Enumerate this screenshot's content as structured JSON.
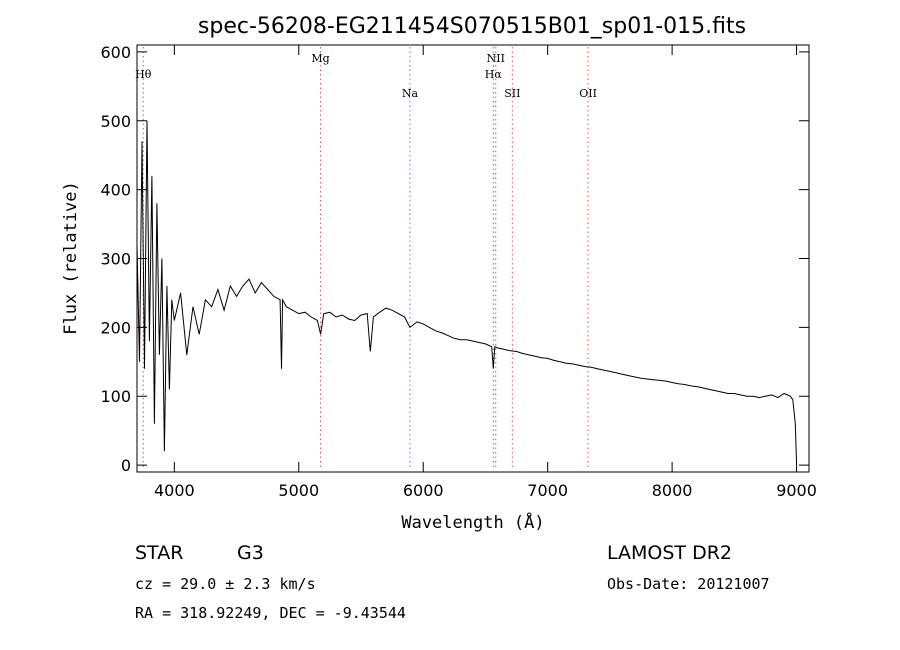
{
  "chart_data": {
    "type": "line",
    "title": "spec-56208-EG211454S070515B01_sp01-015.fits",
    "xlabel": "Wavelength (Å)",
    "ylabel": "Flux (relative)",
    "xlim": [
      3700,
      9100
    ],
    "ylim": [
      -10,
      610
    ],
    "x_ticks": [
      4000,
      5000,
      6000,
      7000,
      8000,
      9000
    ],
    "y_ticks": [
      0,
      100,
      200,
      300,
      400,
      500,
      600
    ],
    "grid": false,
    "series": [
      {
        "x": [
          3700,
          3720,
          3740,
          3760,
          3780,
          3800,
          3820,
          3840,
          3860,
          3880,
          3900,
          3920,
          3940,
          3960,
          3980,
          4000,
          4050,
          4100,
          4150,
          4200,
          4250,
          4300,
          4350,
          4400,
          4450,
          4500,
          4550,
          4600,
          4650,
          4700,
          4750,
          4800,
          4850,
          4861,
          4870,
          4900,
          4950,
          5000,
          5050,
          5100,
          5150,
          5175,
          5200,
          5250,
          5300,
          5350,
          5400,
          5450,
          5500,
          5550,
          5575,
          5600,
          5650,
          5700,
          5750,
          5800,
          5850,
          5893,
          5950,
          6000,
          6050,
          6100,
          6150,
          6200,
          6250,
          6300,
          6350,
          6400,
          6450,
          6500,
          6550,
          6563,
          6575,
          6600,
          6650,
          6700,
          6750,
          6800,
          6850,
          6900,
          6950,
          7000,
          7050,
          7100,
          7150,
          7200,
          7250,
          7300,
          7350,
          7400,
          7450,
          7500,
          7550,
          7600,
          7650,
          7700,
          7750,
          7800,
          7850,
          7900,
          7950,
          8000,
          8050,
          8100,
          8150,
          8200,
          8250,
          8300,
          8350,
          8400,
          8450,
          8500,
          8550,
          8600,
          8650,
          8700,
          8750,
          8800,
          8850,
          8900,
          8950,
          8970,
          8990,
          9000
        ],
        "y": [
          320,
          150,
          470,
          140,
          500,
          180,
          420,
          60,
          380,
          160,
          300,
          20,
          260,
          110,
          240,
          210,
          250,
          160,
          230,
          190,
          240,
          230,
          255,
          225,
          260,
          245,
          260,
          270,
          250,
          265,
          255,
          245,
          240,
          140,
          240,
          230,
          225,
          220,
          222,
          215,
          210,
          190,
          220,
          222,
          215,
          218,
          212,
          210,
          218,
          220,
          165,
          215,
          222,
          228,
          225,
          220,
          215,
          200,
          208,
          205,
          200,
          195,
          192,
          188,
          184,
          182,
          182,
          180,
          178,
          176,
          172,
          140,
          172,
          170,
          168,
          166,
          165,
          162,
          160,
          158,
          156,
          155,
          152,
          150,
          148,
          147,
          145,
          143,
          142,
          140,
          138,
          136,
          134,
          132,
          130,
          128,
          126,
          125,
          124,
          123,
          122,
          120,
          118,
          117,
          115,
          114,
          112,
          110,
          108,
          106,
          104,
          104,
          102,
          100,
          100,
          98,
          100,
          102,
          98,
          104,
          100,
          95,
          60,
          0
        ]
      }
    ],
    "lines": [
      {
        "label": "Hθ",
        "x": 3750,
        "row": 1
      },
      {
        "label": "Mg",
        "x": 5175,
        "row": 0
      },
      {
        "label": "Na",
        "x": 5893,
        "row": 2
      },
      {
        "label": "NII",
        "x": 6583,
        "row": 0
      },
      {
        "label": "Hα",
        "x": 6563,
        "row": 1
      },
      {
        "label": "SII",
        "x": 6716,
        "row": 2
      },
      {
        "label": "OII",
        "x": 7325,
        "row": 2
      }
    ]
  },
  "info": {
    "object_class": "STAR",
    "subclass": "G3",
    "survey": "LAMOST DR2",
    "cz": "cz = 29.0 ± 2.3 km/s",
    "obs_date": "Obs-Date: 20121007",
    "coords": "RA = 318.92249, DEC =  -9.43544"
  }
}
